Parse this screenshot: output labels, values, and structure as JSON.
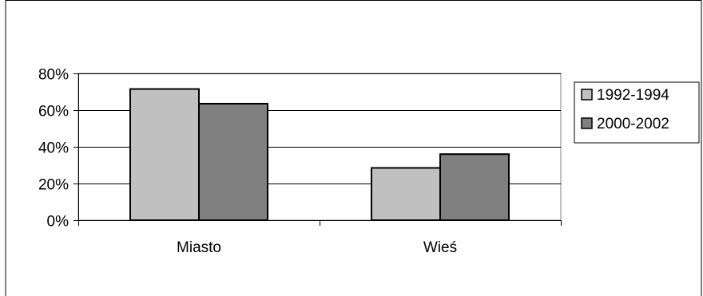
{
  "chart_data": {
    "type": "bar",
    "categories": [
      "Miasto",
      "Wieś"
    ],
    "series": [
      {
        "name": "1992-1994",
        "values": [
          71.5,
          28.5
        ],
        "color": "#c0c0c0"
      },
      {
        "name": "2000-2002",
        "values": [
          63.5,
          36
        ],
        "color": "#808080"
      }
    ],
    "ylim": [
      0,
      80
    ],
    "yticks": [
      0,
      20,
      40,
      60,
      80
    ],
    "ytick_format": "%",
    "grid": true,
    "legend": "right",
    "plot_background": "#ffffff"
  }
}
